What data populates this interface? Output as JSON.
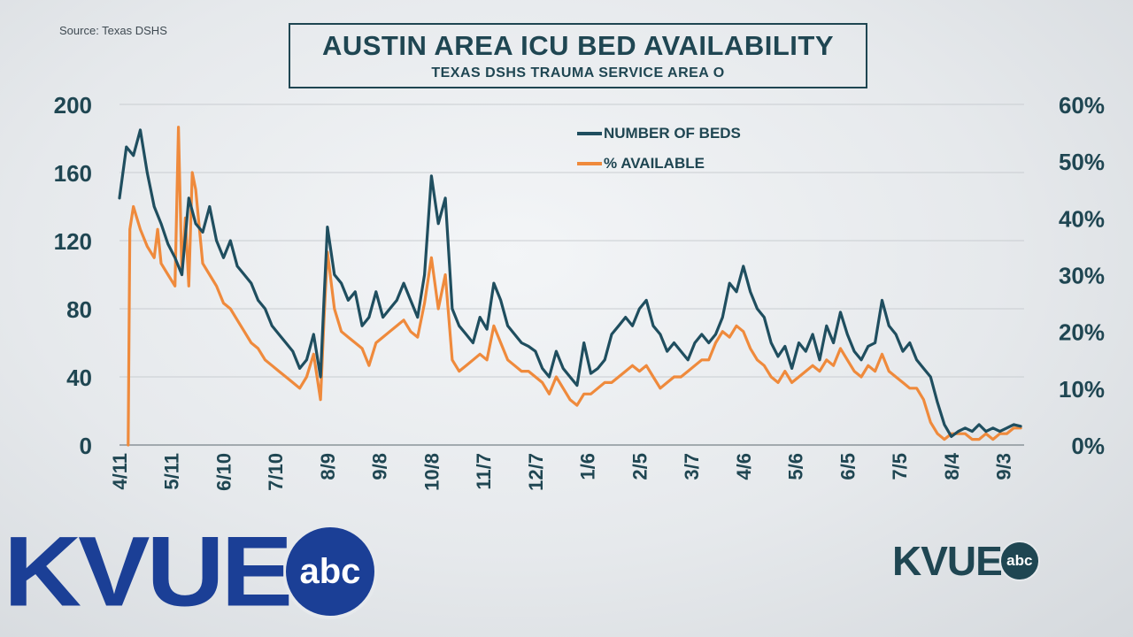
{
  "source": "Source: Texas DSHS",
  "logos": {
    "main_word": "KVUE",
    "main_network": "abc",
    "corner_word": "KVUE",
    "corner_network": "abc"
  },
  "colors": {
    "beds": "#1f4e5f",
    "available": "#ef8a3c",
    "text": "#1f4652",
    "logo_blue": "#1b3f96"
  },
  "chart_data": {
    "type": "line",
    "title": "AUSTIN AREA ICU BED AVAILABILITY",
    "subtitle": "TEXAS DSHS TRAUMA SERVICE AREA O",
    "xlabel": "",
    "ylabel": "",
    "y_left_ticks": [
      "0",
      "40",
      "80",
      "120",
      "160",
      "200"
    ],
    "y_right_ticks": [
      "0%",
      "10%",
      "20%",
      "30%",
      "40%",
      "50%",
      "60%"
    ],
    "ylim_left": [
      0,
      200
    ],
    "ylim_right": [
      0,
      60
    ],
    "x_tick_labels": [
      "4/11",
      "5/11",
      "6/10",
      "7/10",
      "8/9",
      "9/8",
      "10/8",
      "11/7",
      "12/7",
      "1/6",
      "2/5",
      "3/7",
      "4/6",
      "5/6",
      "6/5",
      "7/5",
      "8/4",
      "9/3"
    ],
    "x_tick_positions": [
      0,
      30,
      60,
      90,
      120,
      150,
      180,
      210,
      240,
      270,
      300,
      330,
      360,
      390,
      420,
      450,
      480,
      510
    ],
    "x_range": [
      0,
      522
    ],
    "grid": true,
    "legend_position": "top-center",
    "series": [
      {
        "name": "NUMBER OF BEDS",
        "axis": "left",
        "x": [
          0,
          4,
          8,
          12,
          16,
          20,
          24,
          28,
          32,
          36,
          40,
          44,
          48,
          52,
          56,
          60,
          64,
          68,
          72,
          76,
          80,
          84,
          88,
          92,
          96,
          100,
          104,
          108,
          112,
          116,
          118,
          120,
          124,
          128,
          132,
          136,
          140,
          144,
          148,
          152,
          156,
          160,
          164,
          168,
          172,
          176,
          180,
          184,
          188,
          192,
          196,
          200,
          204,
          208,
          212,
          216,
          220,
          224,
          228,
          232,
          236,
          240,
          244,
          248,
          252,
          256,
          260,
          264,
          268,
          272,
          276,
          280,
          284,
          288,
          292,
          296,
          300,
          304,
          308,
          312,
          316,
          320,
          324,
          328,
          332,
          336,
          340,
          344,
          348,
          352,
          356,
          360,
          364,
          368,
          372,
          376,
          380,
          384,
          388,
          392,
          396,
          400,
          404,
          408,
          412,
          416,
          420,
          424,
          428,
          432,
          436,
          440,
          444,
          448,
          452,
          456,
          460,
          464,
          468,
          472,
          476,
          480,
          484,
          488,
          492,
          496,
          500,
          504,
          508,
          512,
          516,
          520
        ],
        "values": [
          145,
          175,
          170,
          185,
          160,
          140,
          130,
          118,
          110,
          100,
          145,
          130,
          125,
          140,
          120,
          110,
          120,
          105,
          100,
          95,
          85,
          80,
          70,
          65,
          60,
          55,
          45,
          50,
          65,
          40,
          85,
          128,
          100,
          95,
          85,
          90,
          70,
          75,
          90,
          75,
          80,
          85,
          95,
          85,
          75,
          100,
          158,
          130,
          145,
          80,
          70,
          65,
          60,
          75,
          68,
          95,
          85,
          70,
          65,
          60,
          58,
          55,
          45,
          40,
          55,
          45,
          40,
          35,
          60,
          42,
          45,
          50,
          65,
          70,
          75,
          70,
          80,
          85,
          70,
          65,
          55,
          60,
          55,
          50,
          60,
          65,
          60,
          65,
          75,
          95,
          90,
          105,
          90,
          80,
          75,
          60,
          52,
          58,
          45,
          60,
          55,
          65,
          50,
          70,
          60,
          78,
          65,
          55,
          50,
          58,
          60,
          85,
          70,
          65,
          55,
          60,
          50,
          45,
          40,
          25,
          12,
          5,
          8,
          10,
          8,
          12,
          8,
          10,
          8,
          10,
          12,
          11
        ]
      },
      {
        "name": "% AVAILABLE",
        "axis": "right",
        "x": [
          0,
          4,
          5,
          6,
          8,
          12,
          16,
          20,
          22,
          24,
          28,
          32,
          34,
          36,
          38,
          40,
          42,
          44,
          48,
          52,
          56,
          60,
          64,
          68,
          72,
          76,
          80,
          84,
          88,
          92,
          96,
          100,
          104,
          108,
          112,
          116,
          118,
          120,
          124,
          128,
          132,
          136,
          140,
          144,
          148,
          152,
          156,
          160,
          164,
          168,
          172,
          176,
          180,
          184,
          188,
          192,
          196,
          200,
          204,
          208,
          212,
          216,
          220,
          224,
          228,
          232,
          236,
          240,
          244,
          248,
          252,
          256,
          260,
          264,
          268,
          272,
          276,
          280,
          284,
          288,
          292,
          296,
          300,
          304,
          308,
          312,
          316,
          320,
          324,
          328,
          332,
          336,
          340,
          344,
          348,
          352,
          356,
          360,
          364,
          368,
          372,
          376,
          380,
          384,
          388,
          392,
          396,
          400,
          404,
          408,
          412,
          416,
          420,
          424,
          428,
          432,
          436,
          440,
          444,
          448,
          452,
          456,
          460,
          464,
          468,
          472,
          476,
          480,
          484,
          488,
          492,
          496,
          500,
          504,
          508,
          512,
          516,
          520
        ],
        "values": [
          null,
          null,
          0,
          38,
          42,
          38,
          35,
          33,
          38,
          32,
          30,
          28,
          56,
          30,
          40,
          28,
          48,
          45,
          32,
          30,
          28,
          25,
          24,
          22,
          20,
          18,
          17,
          15,
          14,
          13,
          12,
          11,
          10,
          12,
          16,
          8,
          22,
          34,
          24,
          20,
          19,
          18,
          17,
          14,
          18,
          19,
          20,
          21,
          22,
          20,
          19,
          25,
          33,
          24,
          30,
          15,
          13,
          14,
          15,
          16,
          15,
          21,
          18,
          15,
          14,
          13,
          13,
          12,
          11,
          9,
          12,
          10,
          8,
          7,
          9,
          9,
          10,
          11,
          11,
          12,
          13,
          14,
          13,
          14,
          12,
          10,
          11,
          12,
          12,
          13,
          14,
          15,
          15,
          18,
          20,
          19,
          21,
          20,
          17,
          15,
          14,
          12,
          11,
          13,
          11,
          12,
          13,
          14,
          13,
          15,
          14,
          17,
          15,
          13,
          12,
          14,
          13,
          16,
          13,
          12,
          11,
          10,
          10,
          8,
          4,
          2,
          1,
          2,
          2,
          2,
          1,
          1,
          2,
          1,
          2,
          2,
          3,
          3
        ]
      }
    ]
  }
}
